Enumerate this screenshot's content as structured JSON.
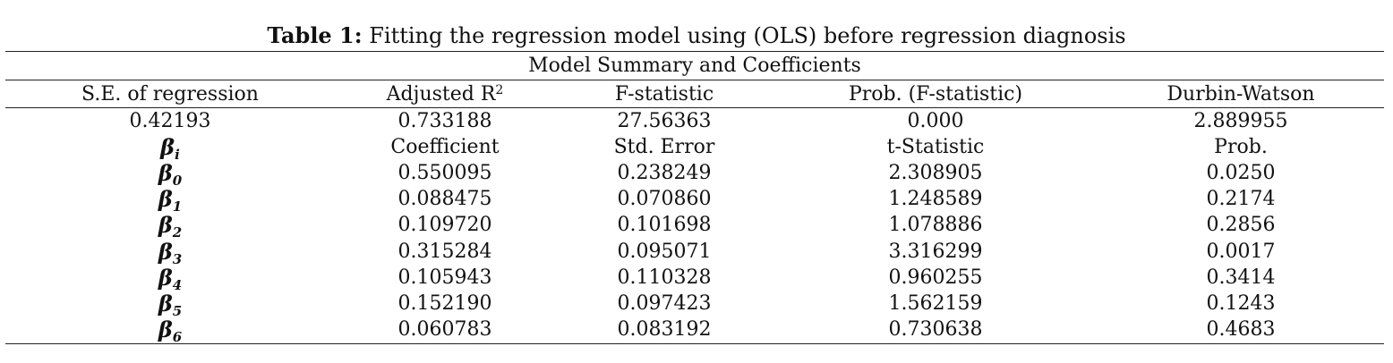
{
  "caption": {
    "label": "Table 1:",
    "text": "Fitting the regression model using (OLS) before regression diagnosis"
  },
  "section_title": "Model Summary and Coefficients",
  "summary_headers": [
    "S.E. of regression",
    "Adjusted R",
    "F-statistic",
    "Prob. (F-statistic)",
    "Durbin-Watson"
  ],
  "adjusted_r_sup": "2",
  "summary_values": [
    "0.42193",
    "0.733188",
    "27.56363",
    "0.000",
    "2.889955"
  ],
  "coef_header": {
    "symbol": "β",
    "subscript": "i",
    "columns": [
      "Coefficient",
      "Std. Error",
      "t-Statistic",
      "Prob."
    ]
  },
  "coefficients": [
    {
      "symbol": "β",
      "sub": "0",
      "values": [
        "0.550095",
        "0.238249",
        "2.308905",
        "0.0250"
      ]
    },
    {
      "symbol": "β",
      "sub": "1",
      "values": [
        "0.088475",
        "0.070860",
        "1.248589",
        "0.2174"
      ]
    },
    {
      "symbol": "β",
      "sub": "2",
      "values": [
        "0.109720",
        "0.101698",
        "1.078886",
        "0.2856"
      ]
    },
    {
      "symbol": "β",
      "sub": "3",
      "values": [
        "0.315284",
        "0.095071",
        "3.316299",
        "0.0017"
      ]
    },
    {
      "symbol": "β",
      "sub": "4",
      "values": [
        "0.105943",
        "0.110328",
        "0.960255",
        "0.3414"
      ]
    },
    {
      "symbol": "β",
      "sub": "5",
      "values": [
        "0.152190",
        "0.097423",
        "1.562159",
        "0.1243"
      ]
    },
    {
      "symbol": "β",
      "sub": "6",
      "values": [
        "0.060783",
        "0.083192",
        "0.730638",
        "0.4683"
      ]
    }
  ]
}
